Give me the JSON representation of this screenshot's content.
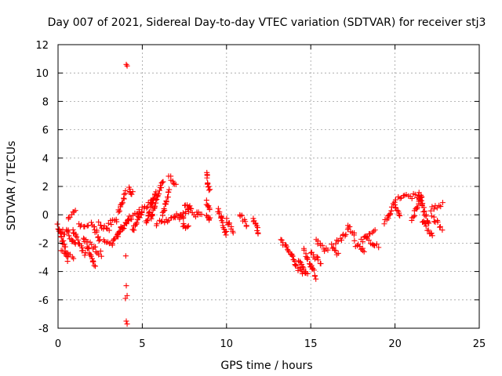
{
  "chart_data": {
    "type": "scatter",
    "title": "Day 007 of 2021, Sidereal Day-to-day VTEC variation (SDTVAR) for receiver stj3",
    "xlabel": "GPS time / hours",
    "ylabel": "SDTVAR / TECUs",
    "xlim": [
      0,
      25
    ],
    "ylim": [
      -8,
      12
    ],
    "xticks": [
      0,
      5,
      10,
      15,
      20,
      25
    ],
    "yticks": [
      -8,
      -6,
      -4,
      -2,
      0,
      2,
      4,
      6,
      8,
      10,
      12
    ],
    "xtick_labels": [
      "0",
      "5",
      "10",
      "15",
      "20",
      "25"
    ],
    "ytick_labels": [
      "-8",
      "-6",
      "-4",
      "-2",
      "0",
      "2",
      "4",
      "6",
      "8",
      "10",
      "12"
    ],
    "grid": true,
    "marker": "+",
    "colors": {
      "series": "#ff0000",
      "grid": "#a0a0a0",
      "axis": "#000000"
    },
    "series": [
      {
        "name": "SDTVAR",
        "segments": [
          [
            0.0,
            -0.8,
            0.6,
            -3.2
          ],
          [
            0.0,
            -1.0,
            0.4,
            -1.3
          ],
          [
            0.2,
            -2.5,
            0.9,
            -3.0
          ],
          [
            0.5,
            -1.0,
            1.0,
            -2.2
          ],
          [
            0.6,
            -0.2,
            1.0,
            0.4
          ],
          [
            0.9,
            -1.2,
            1.6,
            -2.8
          ],
          [
            1.2,
            -0.8,
            1.8,
            -0.8
          ],
          [
            1.5,
            -1.6,
            2.2,
            -3.6
          ],
          [
            1.8,
            -2.0,
            2.6,
            -2.8
          ],
          [
            2.0,
            -0.6,
            2.5,
            -1.8
          ],
          [
            2.4,
            -0.5,
            3.0,
            -1.2
          ],
          [
            2.7,
            -1.8,
            3.2,
            -2.2
          ],
          [
            3.0,
            -0.6,
            3.5,
            -0.4
          ],
          [
            3.2,
            -2.0,
            3.8,
            -0.8
          ],
          [
            3.6,
            0.2,
            4.0,
            1.6
          ],
          [
            3.5,
            -1.5,
            4.2,
            -0.2
          ],
          [
            4.2,
            1.8,
            4.4,
            1.5
          ],
          [
            4.0,
            -0.5,
            4.8,
            0.2
          ],
          [
            4.4,
            -1.2,
            5.0,
            0.4
          ],
          [
            4.8,
            0.0,
            5.6,
            1.0
          ],
          [
            5.2,
            -0.6,
            5.8,
            1.6
          ],
          [
            5.5,
            -0.3,
            6.2,
            2.4
          ],
          [
            5.8,
            -0.6,
            6.4,
            -0.4
          ],
          [
            6.2,
            0.0,
            6.6,
            1.8
          ],
          [
            6.6,
            2.7,
            7.0,
            2.1
          ],
          [
            6.5,
            -0.5,
            7.4,
            0.2
          ],
          [
            7.2,
            -0.4,
            7.8,
            0.5
          ],
          [
            7.5,
            0.8,
            8.0,
            0.2
          ],
          [
            7.4,
            -0.8,
            7.7,
            -0.8
          ],
          [
            8.1,
            0.0,
            8.5,
            0.2
          ],
          [
            8.8,
            2.9,
            9.0,
            1.7
          ],
          [
            8.8,
            0.9,
            9.0,
            0.3
          ],
          [
            8.8,
            -0.2,
            9.0,
            -0.3
          ],
          [
            9.5,
            0.4,
            10.0,
            -1.4
          ],
          [
            10.0,
            -0.3,
            10.4,
            -1.2
          ],
          [
            10.8,
            0.1,
            11.2,
            -0.7
          ],
          [
            11.6,
            -0.2,
            11.9,
            -1.3
          ],
          [
            13.2,
            -1.8,
            14.0,
            -3.0
          ],
          [
            13.8,
            -2.8,
            14.5,
            -4.2
          ],
          [
            14.3,
            -3.2,
            14.8,
            -4.2
          ],
          [
            14.6,
            -2.5,
            15.3,
            -4.4
          ],
          [
            15.0,
            -2.6,
            15.6,
            -3.4
          ],
          [
            15.3,
            -1.8,
            16.0,
            -2.6
          ],
          [
            16.2,
            -2.2,
            16.6,
            -2.8
          ],
          [
            16.5,
            -2.0,
            17.2,
            -1.2
          ],
          [
            17.2,
            -0.8,
            17.6,
            -1.4
          ],
          [
            17.6,
            -2.0,
            18.2,
            -2.6
          ],
          [
            18.0,
            -1.8,
            18.8,
            -1.2
          ],
          [
            18.2,
            -1.6,
            19.0,
            -2.2
          ],
          [
            19.4,
            -0.6,
            20.0,
            1.0
          ],
          [
            20.0,
            0.7,
            20.3,
            -0.1
          ],
          [
            20.2,
            1.2,
            21.5,
            1.4
          ],
          [
            21.0,
            -0.3,
            21.6,
            1.3
          ],
          [
            21.4,
            1.4,
            22.0,
            -0.6
          ],
          [
            21.6,
            -0.4,
            22.2,
            -1.5
          ],
          [
            22.1,
            0.4,
            22.8,
            0.7
          ],
          [
            22.2,
            -0.2,
            22.8,
            -0.9
          ]
        ],
        "outliers": [
          [
            4.05,
            10.6
          ],
          [
            4.1,
            10.5
          ],
          [
            4.02,
            -2.9
          ],
          [
            4.05,
            -5.0
          ],
          [
            4.1,
            -5.7
          ],
          [
            4.0,
            -5.9
          ],
          [
            4.05,
            -7.5
          ],
          [
            4.1,
            -7.7
          ]
        ]
      }
    ]
  }
}
